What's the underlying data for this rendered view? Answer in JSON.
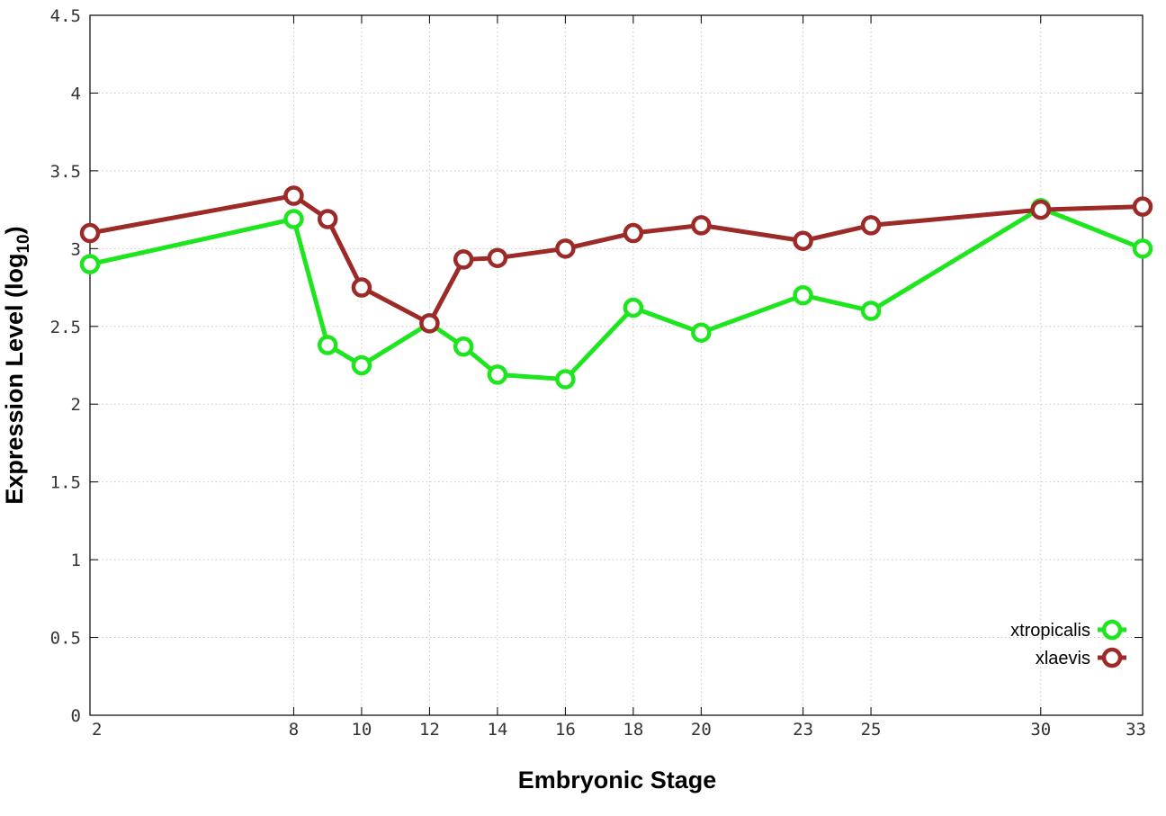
{
  "chart_data": {
    "type": "line",
    "xlabel": "Embryonic Stage",
    "ylabel_main": "Expression Level (log",
    "ylabel_sub": "10",
    "ylabel_close": ")",
    "xlim": [
      2,
      33
    ],
    "ylim": [
      0,
      4.5
    ],
    "x_ticks": [
      2,
      8,
      10,
      12,
      14,
      16,
      18,
      20,
      23,
      25,
      30,
      33
    ],
    "y_ticks": [
      0,
      0.5,
      1,
      1.5,
      2,
      2.5,
      3,
      3.5,
      4,
      4.5
    ],
    "grid": true,
    "legend_position": "bottom-right",
    "x": [
      2,
      8,
      9,
      10,
      12,
      13,
      14,
      16,
      18,
      20,
      23,
      25,
      30,
      33
    ],
    "series": [
      {
        "name": "xtropicalis",
        "color": "#1ee61e",
        "values": [
          2.9,
          3.19,
          2.38,
          2.25,
          2.52,
          2.37,
          2.19,
          2.16,
          2.62,
          2.46,
          2.7,
          2.6,
          3.26,
          3.0
        ]
      },
      {
        "name": "xlaevis",
        "color": "#9b2a28",
        "values": [
          3.1,
          3.34,
          3.19,
          2.75,
          2.52,
          2.93,
          2.94,
          3.0,
          3.1,
          3.15,
          3.05,
          3.15,
          3.25,
          3.27
        ]
      }
    ]
  }
}
